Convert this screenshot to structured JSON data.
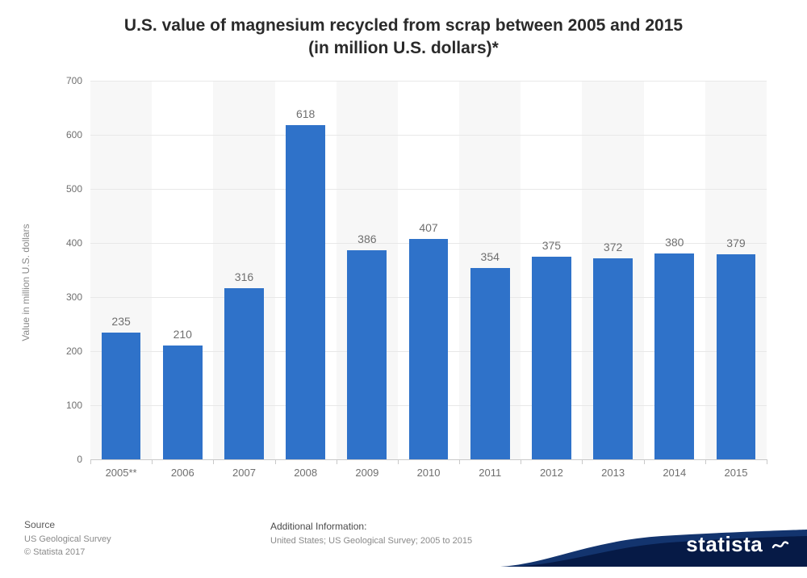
{
  "title_line1": "U.S. value of magnesium recycled from scrap between 2005 and 2015",
  "title_line2": "(in million U.S. dollars)*",
  "title_fontsize": 21,
  "chart": {
    "type": "bar",
    "ylabel": "Value in million U.S. dollars",
    "categories": [
      "2005**",
      "2006",
      "2007",
      "2008",
      "2009",
      "2010",
      "2011",
      "2012",
      "2013",
      "2014",
      "2015"
    ],
    "values": [
      235,
      210,
      316,
      618,
      386,
      407,
      354,
      375,
      372,
      380,
      379
    ],
    "bar_color": "#2f72c9",
    "value_label_color": "#6f6f6f",
    "value_label_fontsize": 14,
    "category_label_fontsize": 13,
    "ylim": [
      0,
      700
    ],
    "ytick_step": 100,
    "yticks": [
      0,
      100,
      200,
      300,
      400,
      500,
      600,
      700
    ],
    "grid_color": "#e8e8e8",
    "alt_band_color": "#f7f7f7",
    "axis_color": "#c9c9c9",
    "background_color": "#ffffff",
    "bar_width_ratio": 0.64
  },
  "footer": {
    "source_heading": "Source",
    "source_line1": "US Geological Survey",
    "source_line2": "© Statista 2017",
    "additional_heading": "Additional Information:",
    "additional_line": "United States; US Geological Survey; 2005 to 2015",
    "logo_text": "statista",
    "swoosh_color": "#061a46",
    "swoosh_color_light": "#13346e"
  }
}
